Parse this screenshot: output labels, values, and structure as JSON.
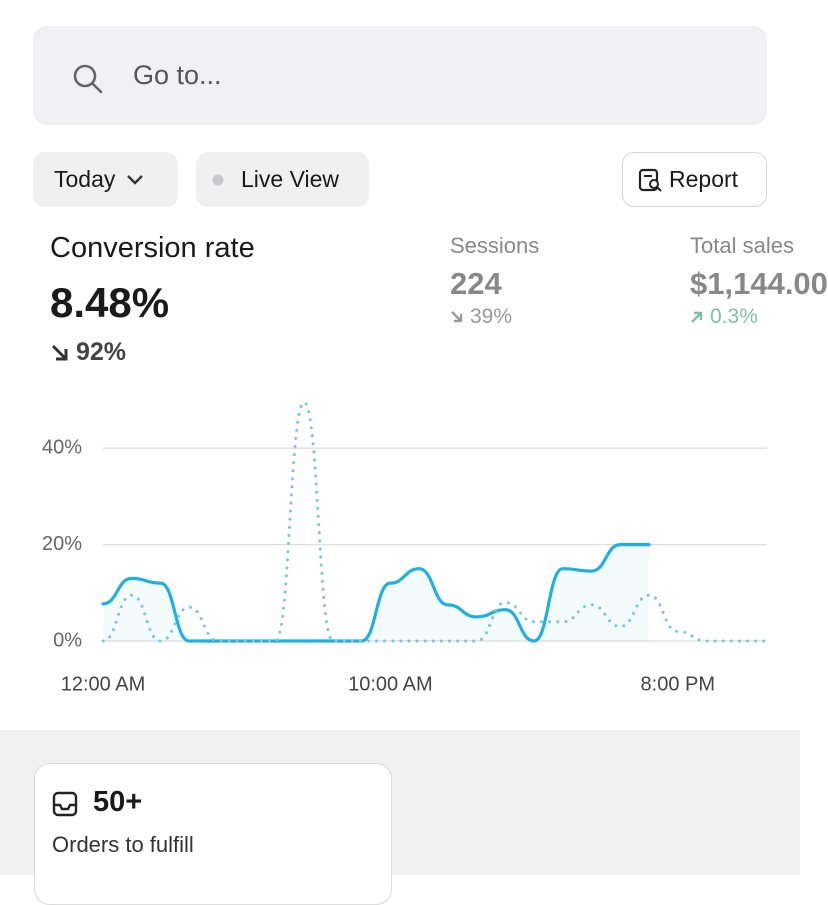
{
  "search": {
    "placeholder": "Go to..."
  },
  "toolbar": {
    "period": "Today",
    "live": "Live View",
    "report": "Report"
  },
  "metrics": [
    {
      "label": "Conversion rate",
      "value": "8.48%",
      "change": "92%"
    },
    {
      "label": "Sessions",
      "value": "224",
      "change": "39%"
    },
    {
      "label": "Total sales",
      "value": "$1,144.00",
      "change": "0.3%"
    }
  ],
  "chart_data": {
    "type": "line",
    "x": [
      0,
      1,
      2,
      3,
      4,
      5,
      6,
      7,
      8,
      9,
      10,
      11,
      12,
      13,
      14,
      15,
      16,
      17,
      18,
      19,
      20,
      21,
      22,
      23
    ],
    "xlim": [
      0,
      23
    ],
    "xticks": [
      {
        "value": 0,
        "label": "12:00 AM"
      },
      {
        "value": 10,
        "label": "10:00 AM"
      },
      {
        "value": 20,
        "label": "8:00 PM"
      }
    ],
    "ylim": [
      0,
      50
    ],
    "yticks": [
      {
        "value": 0,
        "label": "0%"
      },
      {
        "value": 20,
        "label": "20%"
      },
      {
        "value": 40,
        "label": "40%"
      }
    ],
    "grid": true,
    "series": [
      {
        "color": "#1fb0e0",
        "style": "solid",
        "values": [
          7.7,
          13,
          12,
          0,
          0,
          0,
          0,
          0,
          0,
          0,
          12,
          15,
          7.5,
          5,
          6.5,
          0,
          15,
          14.5,
          20,
          20,
          null,
          null,
          null,
          null
        ]
      },
      {
        "color": "#7cc6dc",
        "style": "dotted",
        "values": [
          0,
          9.5,
          0,
          7,
          0,
          0,
          0,
          49.5,
          0,
          0,
          0,
          0,
          0,
          0,
          8,
          4,
          4,
          7.5,
          3,
          9.5,
          2,
          0,
          0,
          0
        ]
      }
    ]
  },
  "cards": [
    {
      "value": "50+",
      "label": "Orders to fulfill"
    }
  ]
}
